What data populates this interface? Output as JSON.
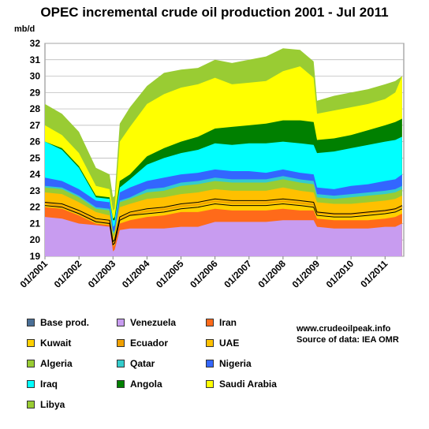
{
  "chart_data": {
    "type": "area",
    "title": "OPEC incremental crude oil production 2001 - Jul 2011",
    "ylabel": "mb/d",
    "ylim": [
      19,
      32
    ],
    "yticks": [
      "19",
      "20",
      "21",
      "22",
      "23",
      "24",
      "25",
      "26",
      "27",
      "28",
      "29",
      "30",
      "31",
      "32"
    ],
    "xticks": [
      "01/2001",
      "01/2002",
      "01/2003",
      "01/2004",
      "01/2005",
      "01/2006",
      "01/2007",
      "01/2008",
      "01/2009",
      "01/2010",
      "01/2011"
    ],
    "x": [
      2001.0,
      2001.5,
      2002.0,
      2002.5,
      2002.9,
      2003.0,
      2003.05,
      2003.2,
      2003.5,
      2004.0,
      2004.5,
      2005.0,
      2005.5,
      2006.0,
      2006.5,
      2007.0,
      2007.5,
      2008.0,
      2008.5,
      2008.9,
      2009.0,
      2009.5,
      2010.0,
      2010.5,
      2011.0,
      2011.3,
      2011.5
    ],
    "stack_type": "cumulative",
    "series": [
      {
        "name": "Base prod.",
        "color": "#4a6f96",
        "values": [
          19,
          19,
          19,
          19,
          19,
          19,
          19,
          19,
          19,
          19,
          19,
          19,
          19,
          19,
          19,
          19,
          19,
          19,
          19,
          19,
          19,
          19,
          19,
          19,
          19,
          19,
          19
        ]
      },
      {
        "name": "Venezuela",
        "color": "#c89cf0",
        "values": [
          21.4,
          21.3,
          21.0,
          20.9,
          20.8,
          19.3,
          19.4,
          20.6,
          20.7,
          20.7,
          20.7,
          20.8,
          20.8,
          21.1,
          21.1,
          21.1,
          21.1,
          21.2,
          21.2,
          21.2,
          20.8,
          20.7,
          20.7,
          20.7,
          20.8,
          20.8,
          21.0
        ]
      },
      {
        "name": "Iran",
        "color": "#ff6a1a",
        "values": [
          22.0,
          21.9,
          21.5,
          21.0,
          20.9,
          19.6,
          19.7,
          21.0,
          21.2,
          21.4,
          21.5,
          21.7,
          21.7,
          21.9,
          21.8,
          21.8,
          21.8,
          21.9,
          21.8,
          21.8,
          21.3,
          21.2,
          21.2,
          21.2,
          21.3,
          21.4,
          21.6
        ]
      },
      {
        "name": "Kuwait",
        "color": "#ffd000",
        "values": [
          22.2,
          22.0,
          21.6,
          21.1,
          21.0,
          19.7,
          19.8,
          21.2,
          21.5,
          21.7,
          21.8,
          22.0,
          22.1,
          22.3,
          22.2,
          22.2,
          22.2,
          22.3,
          22.2,
          22.1,
          21.6,
          21.5,
          21.5,
          21.6,
          21.7,
          21.8,
          22.0
        ]
      },
      {
        "name": "Ecuador",
        "color": "#f0a000",
        "values": [
          22.3,
          22.1,
          21.7,
          21.2,
          21.1,
          19.8,
          19.9,
          21.3,
          21.6,
          21.8,
          21.9,
          22.1,
          22.2,
          22.4,
          22.3,
          22.3,
          22.3,
          22.4,
          22.3,
          22.2,
          21.7,
          21.6,
          21.6,
          21.7,
          21.8,
          21.9,
          22.1
        ]
      },
      {
        "name": "UAE",
        "color": "#ffc000",
        "values": [
          22.9,
          22.8,
          22.3,
          21.7,
          21.5,
          20.2,
          20.3,
          22.0,
          22.2,
          22.5,
          22.6,
          22.8,
          22.9,
          23.1,
          23.0,
          23.0,
          23.0,
          23.2,
          23.0,
          22.9,
          22.3,
          22.2,
          22.2,
          22.3,
          22.4,
          22.5,
          22.7
        ]
      },
      {
        "name": "Algeria",
        "color": "#99cc33",
        "values": [
          23.2,
          23.1,
          22.6,
          21.9,
          21.8,
          20.4,
          20.5,
          22.3,
          22.5,
          22.9,
          23.0,
          23.3,
          23.4,
          23.6,
          23.5,
          23.5,
          23.5,
          23.7,
          23.5,
          23.4,
          22.6,
          22.5,
          22.6,
          22.7,
          22.8,
          22.9,
          23.1
        ]
      },
      {
        "name": "Qatar",
        "color": "#33cccc",
        "values": [
          23.3,
          23.2,
          22.7,
          22.0,
          21.9,
          20.5,
          20.6,
          22.4,
          22.6,
          23.1,
          23.2,
          23.5,
          23.6,
          23.8,
          23.7,
          23.7,
          23.7,
          23.9,
          23.7,
          23.6,
          22.8,
          22.7,
          22.8,
          22.9,
          23.0,
          23.1,
          23.3
        ]
      },
      {
        "name": "Nigeria",
        "color": "#3366ff",
        "values": [
          23.8,
          23.6,
          23.1,
          22.4,
          22.3,
          20.8,
          20.9,
          22.9,
          23.2,
          23.6,
          23.8,
          24.0,
          24.1,
          24.3,
          24.2,
          24.2,
          24.1,
          24.3,
          24.1,
          24.0,
          23.2,
          23.1,
          23.3,
          23.4,
          23.6,
          23.7,
          24.0
        ]
      },
      {
        "name": "Iraq",
        "color": "#00ffff",
        "values": [
          26.0,
          25.5,
          24.4,
          22.6,
          22.5,
          21.2,
          21.2,
          23.2,
          23.7,
          24.6,
          25.0,
          25.3,
          25.5,
          25.9,
          25.8,
          25.9,
          25.9,
          26.0,
          25.9,
          25.8,
          25.3,
          25.4,
          25.6,
          25.8,
          26.0,
          26.1,
          26.3
        ]
      },
      {
        "name": "Angola",
        "color": "#008000",
        "values": [
          26.0,
          25.6,
          24.5,
          22.7,
          22.6,
          21.3,
          21.4,
          23.6,
          24.0,
          25.1,
          25.6,
          26.0,
          26.3,
          26.8,
          26.9,
          27.0,
          27.1,
          27.3,
          27.3,
          27.2,
          26.1,
          26.2,
          26.4,
          26.7,
          27.0,
          27.2,
          27.4
        ]
      },
      {
        "name": "Saudi Arabia",
        "color": "#ffff00",
        "values": [
          27.0,
          26.4,
          25.3,
          23.3,
          23.1,
          21.8,
          21.9,
          26.0,
          26.9,
          28.3,
          28.9,
          29.3,
          29.5,
          29.9,
          29.5,
          29.6,
          29.7,
          30.3,
          30.6,
          29.9,
          27.7,
          27.9,
          28.1,
          28.3,
          28.6,
          29.0,
          30.0
        ]
      },
      {
        "name": "Libya",
        "color": "#99cc33",
        "values": [
          28.3,
          27.7,
          26.6,
          24.4,
          24.0,
          22.6,
          22.7,
          27.1,
          28.1,
          29.4,
          30.2,
          30.4,
          30.5,
          31.0,
          30.8,
          31.0,
          31.2,
          31.7,
          31.6,
          30.9,
          28.5,
          28.8,
          29.0,
          29.2,
          29.5,
          29.7,
          30.0
        ]
      }
    ],
    "lines": [
      {
        "name": "",
        "color": "#000000",
        "values": [
          22.1,
          22.0,
          21.6,
          21.1,
          21.0,
          19.7,
          19.8,
          21.2,
          21.5,
          21.6,
          21.7,
          21.9,
          22.0,
          22.2,
          22.1,
          22.1,
          22.1,
          22.2,
          22.1,
          22.0,
          21.5,
          21.4,
          21.4,
          21.5,
          21.6,
          21.7,
          21.9
        ]
      },
      {
        "name": "",
        "color": "#000000",
        "values": [
          22.3,
          22.2,
          21.8,
          21.3,
          21.2,
          19.9,
          20.0,
          21.4,
          21.7,
          21.9,
          22.0,
          22.2,
          22.3,
          22.5,
          22.4,
          22.4,
          22.4,
          22.5,
          22.4,
          22.3,
          21.7,
          21.6,
          21.6,
          21.7,
          21.8,
          21.9,
          22.1
        ]
      }
    ],
    "source_note": [
      "www.crudeoilpeak.info",
      "Source of data: IEA OMR"
    ]
  }
}
